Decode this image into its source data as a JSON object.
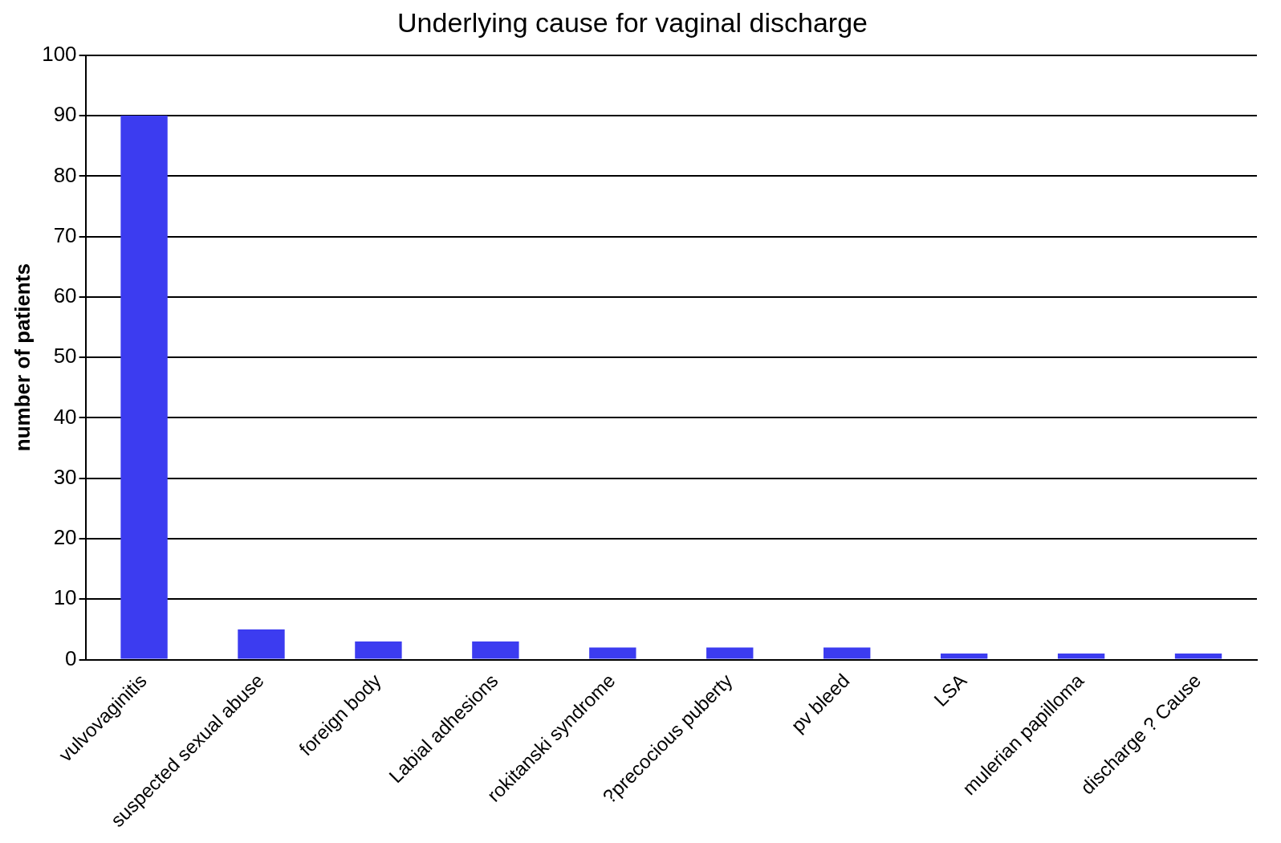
{
  "chart_data": {
    "type": "bar",
    "title": "Underlying cause for vaginal discharge",
    "ylabel": "number of patients",
    "categories": [
      "vulvovaginitis",
      "suspected sexual abuse",
      "foreign body",
      "Labial adhesions",
      "rokitanski syndrome",
      "?precocious puberty",
      "pv bleed",
      "LSA",
      "mulerian papilloma",
      "discharge ? Cause"
    ],
    "values": [
      90,
      5,
      3,
      3,
      2,
      2,
      2,
      1,
      1,
      1
    ],
    "color": "#3c3cf0",
    "ylim": [
      0,
      100
    ],
    "yticks": [
      0,
      10,
      20,
      30,
      40,
      50,
      60,
      70,
      80,
      90,
      100
    ],
    "grid": "y",
    "legend": false
  }
}
